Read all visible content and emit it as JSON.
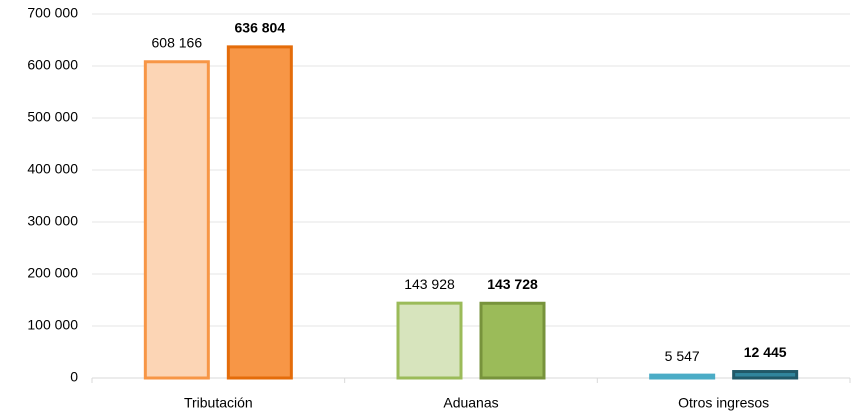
{
  "chart_data": {
    "type": "bar",
    "categories": [
      "Tributación",
      "Aduanas",
      "Otros ingresos"
    ],
    "series": [
      {
        "values": [
          608166,
          143928,
          5547
        ],
        "value_labels": [
          "608 166",
          "143 928",
          "5 547"
        ],
        "colors": [
          "#fcd5b5",
          "#d7e4bd",
          "#b7dee8"
        ],
        "edge_colors": [
          "#f79646",
          "#9bbb59",
          "#4bacc6"
        ],
        "label_bold": false
      },
      {
        "values": [
          636804,
          143728,
          12445
        ],
        "value_labels": [
          "636 804",
          "143 728",
          "12 445"
        ],
        "colors": [
          "#f79646",
          "#9bbb59",
          "#31859c"
        ],
        "edge_colors": [
          "#e46c0a",
          "#77933c",
          "#215968"
        ],
        "label_bold": true
      }
    ],
    "ylim": [
      0,
      700000
    ],
    "yticks": [
      0,
      {
        "value": 100000,
        "label": "100 000"
      },
      {
        "value": 200000,
        "label": "200 000"
      },
      {
        "value": 300000,
        "label": "300 000"
      },
      {
        "value": 400000,
        "label": "400 000"
      },
      {
        "value": 500000,
        "label": "500 000"
      },
      {
        "value": 600000,
        "label": "600 000"
      },
      {
        "value": 700000,
        "label": "700 000"
      }
    ],
    "grid": true
  }
}
